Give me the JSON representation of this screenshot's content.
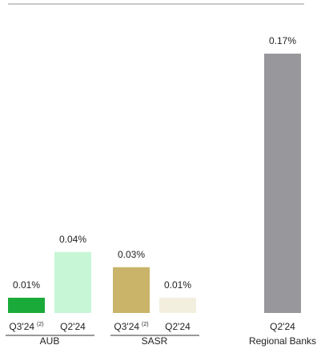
{
  "chart_data": {
    "type": "bar",
    "categories": [
      "Q3'24",
      "Q2'24",
      "Q3'24",
      "Q2'24",
      "Q2'24"
    ],
    "category_notes": [
      "(2)",
      null,
      "(2)",
      null,
      null
    ],
    "groups": [
      "AUB",
      "AUB",
      "SASR",
      "SASR",
      "Regional Banks"
    ],
    "values": [
      0.01,
      0.04,
      0.03,
      0.01,
      0.17
    ],
    "value_labels": [
      "0.01%",
      "0.04%",
      "0.03%",
      "0.01%",
      "0.17%"
    ],
    "colors": [
      "#1aaa3a",
      "#c6f6d6",
      "#c9b46a",
      "#f3efdf",
      "#98979c"
    ]
  }
}
